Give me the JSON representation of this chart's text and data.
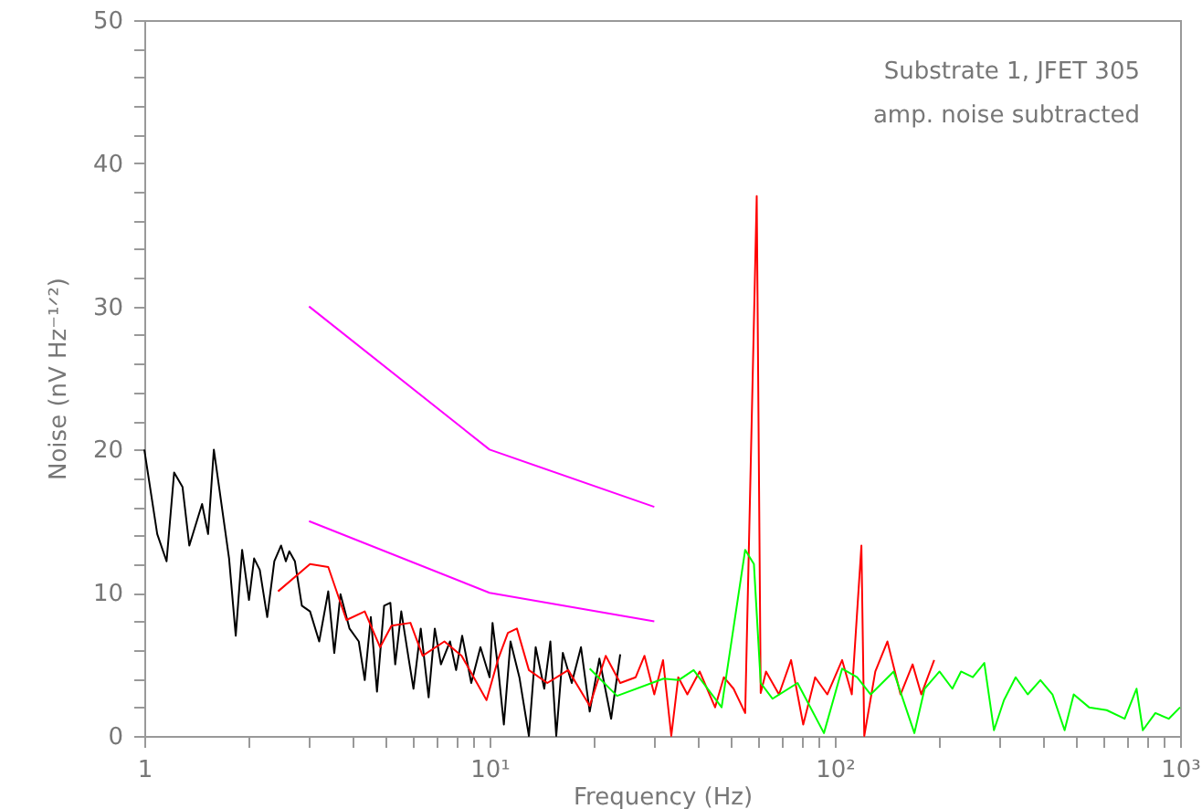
{
  "chart_data": {
    "type": "line",
    "xlabel": "Frequency (Hz)",
    "ylabel": "Noise (nV Hz⁻¹ᐟ²)",
    "annotations": [
      "Substrate 1, JFET 305",
      "amp. noise subtracted"
    ],
    "log": "x",
    "grid": false,
    "legend": false,
    "marker": "none",
    "line_style": "solid",
    "xlim": [
      1,
      1000
    ],
    "ylim": [
      0,
      50
    ],
    "xticks": [
      1,
      {
        "value": 2,
        "label": null
      },
      {
        "value": 3,
        "label": null
      },
      {
        "value": 4,
        "label": null
      },
      {
        "value": 5,
        "label": null
      },
      {
        "value": 6,
        "label": null
      },
      {
        "value": 7,
        "label": null
      },
      {
        "value": 8,
        "label": null
      },
      {
        "value": 9,
        "label": null
      },
      {
        "value": 10,
        "label": "10¹"
      },
      {
        "value": 20,
        "label": null
      },
      {
        "value": 30,
        "label": null
      },
      {
        "value": 40,
        "label": null
      },
      {
        "value": 50,
        "label": null
      },
      {
        "value": 60,
        "label": null
      },
      {
        "value": 70,
        "label": null
      },
      {
        "value": 80,
        "label": null
      },
      {
        "value": 90,
        "label": null
      },
      {
        "value": 100,
        "label": "10²"
      },
      {
        "value": 200,
        "label": null
      },
      {
        "value": 300,
        "label": null
      },
      {
        "value": 400,
        "label": null
      },
      {
        "value": 500,
        "label": null
      },
      {
        "value": 600,
        "label": null
      },
      {
        "value": 700,
        "label": null
      },
      {
        "value": 800,
        "label": null
      },
      {
        "value": 900,
        "label": null
      },
      {
        "value": 1000,
        "label": "10³"
      }
    ],
    "yticks": [
      0,
      {
        "value": 2,
        "label": null
      },
      {
        "value": 4,
        "label": null
      },
      {
        "value": 6,
        "label": null
      },
      {
        "value": 8,
        "label": null
      },
      10,
      {
        "value": 12,
        "label": null
      },
      {
        "value": 14,
        "label": null
      },
      {
        "value": 16,
        "label": null
      },
      {
        "value": 18,
        "label": null
      },
      20,
      {
        "value": 22,
        "label": null
      },
      {
        "value": 24,
        "label": null
      },
      {
        "value": 26,
        "label": null
      },
      {
        "value": 28,
        "label": null
      },
      30,
      {
        "value": 32,
        "label": null
      },
      {
        "value": 34,
        "label": null
      },
      {
        "value": 36,
        "label": null
      },
      {
        "value": 38,
        "label": null
      },
      40,
      {
        "value": 42,
        "label": null
      },
      {
        "value": 44,
        "label": null
      },
      {
        "value": 46,
        "label": null
      },
      {
        "value": 48,
        "label": null
      },
      50
    ],
    "series": [
      {
        "color": "#000000",
        "x": [
          1,
          1.09,
          1.16,
          1.22,
          1.29,
          1.35,
          1.47,
          1.53,
          1.59,
          1.76,
          1.84,
          1.92,
          2.01,
          2.08,
          2.16,
          2.27,
          2.38,
          2.49,
          2.57,
          2.63,
          2.73,
          2.86,
          3.02,
          3.21,
          3.41,
          3.55,
          3.7,
          3.93,
          4.18,
          4.35,
          4.53,
          4.72,
          4.95,
          5.16,
          5.33,
          5.55,
          5.83,
          6.02,
          6.32,
          6.66,
          6.94,
          7.23,
          7.68,
          8.0,
          8.33,
          8.85,
          9.41,
          10.0,
          10.2,
          10.6,
          11.0,
          11.5,
          12.2,
          13.0,
          13.6,
          14.4,
          15.0,
          15.6,
          16.3,
          17.3,
          18.4,
          19.5,
          20.8,
          22.5,
          23.9
        ],
        "values": [
          20,
          14.1,
          12.2,
          18.4,
          17.4,
          13.3,
          16.2,
          14.1,
          20,
          12.4,
          7,
          13,
          9.5,
          12.4,
          11.6,
          8.3,
          12.2,
          13.3,
          12.2,
          12.9,
          12.2,
          9.1,
          8.7,
          6.6,
          10.1,
          5.8,
          9.9,
          7.5,
          6.6,
          3.9,
          8.3,
          3.1,
          9.1,
          9.3,
          5,
          8.7,
          5.4,
          3.3,
          7.5,
          2.7,
          7.5,
          5,
          6.6,
          4.6,
          7,
          3.7,
          6.2,
          4.1,
          7.9,
          4.6,
          0.8,
          6.6,
          4.1,
          0,
          6.2,
          3.3,
          6.6,
          0,
          5.8,
          3.7,
          6.2,
          1.7,
          5.4,
          1.2,
          5.7
        ]
      },
      {
        "color": "#ff0000",
        "x": [
          2.44,
          3.02,
          3.41,
          3.85,
          4.35,
          4.82,
          5.2,
          5.9,
          6.4,
          7.4,
          8.3,
          9.8,
          10.6,
          11.3,
          12.0,
          13.0,
          14.7,
          16.9,
          19.5,
          21.7,
          23.9,
          26.5,
          28.1,
          30,
          31.8,
          33.6,
          35.2,
          37.4,
          40.6,
          45.0,
          47.7,
          50.9,
          55.0,
          59.4,
          61,
          63.2,
          68.9,
          74.7,
          81.0,
          87.7,
          95.1,
          105,
          112,
          119.4,
          121.7,
          131,
          142,
          155,
          168,
          178,
          194
        ],
        "values": [
          10.1,
          12.0,
          11.8,
          8.1,
          8.7,
          6.2,
          7.7,
          7.9,
          5.6,
          6.6,
          5.6,
          2.5,
          5.4,
          7.2,
          7.5,
          4.6,
          3.7,
          4.6,
          2.1,
          5.6,
          3.7,
          4.1,
          5.6,
          2.9,
          5.3,
          0,
          4.1,
          2.9,
          4.5,
          2,
          4.1,
          3.3,
          1.6,
          37.7,
          3,
          4.5,
          2.9,
          5.3,
          0.8,
          4.1,
          2.9,
          5.3,
          2.9,
          13.3,
          0,
          4.5,
          6.6,
          2.9,
          5.0,
          2.9,
          5.3
        ]
      },
      {
        "color": "#00ff00",
        "x": [
          19.5,
          23.4,
          31.9,
          35.3,
          39,
          47,
          55,
          58.3,
          61,
          66,
          78,
          93,
          105,
          116,
          127,
          148,
          170,
          182,
          201,
          219,
          232,
          251,
          271,
          289,
          309,
          334,
          362,
          394,
          427,
          463,
          492,
          545,
          613,
          691,
          748,
          780,
          848,
          927,
          1000
        ],
        "values": [
          4.7,
          2.8,
          4.0,
          3.9,
          4.6,
          2,
          13.0,
          12.0,
          3.7,
          2.6,
          3.7,
          0.2,
          4.7,
          4.1,
          2.9,
          4.5,
          0.2,
          3.3,
          4.5,
          3.3,
          4.5,
          4.1,
          5.1,
          0.4,
          2.5,
          4.1,
          2.9,
          3.9,
          2.9,
          0.4,
          2.9,
          2,
          1.8,
          1.2,
          3.3,
          0.4,
          1.6,
          1.2,
          2
        ]
      },
      {
        "color": "#ff00ff",
        "x": [
          3,
          10,
          30
        ],
        "values": [
          30,
          20,
          16
        ]
      },
      {
        "color": "#ff00ff",
        "x": [
          3,
          10,
          30
        ],
        "values": [
          15,
          10,
          8
        ]
      }
    ]
  }
}
